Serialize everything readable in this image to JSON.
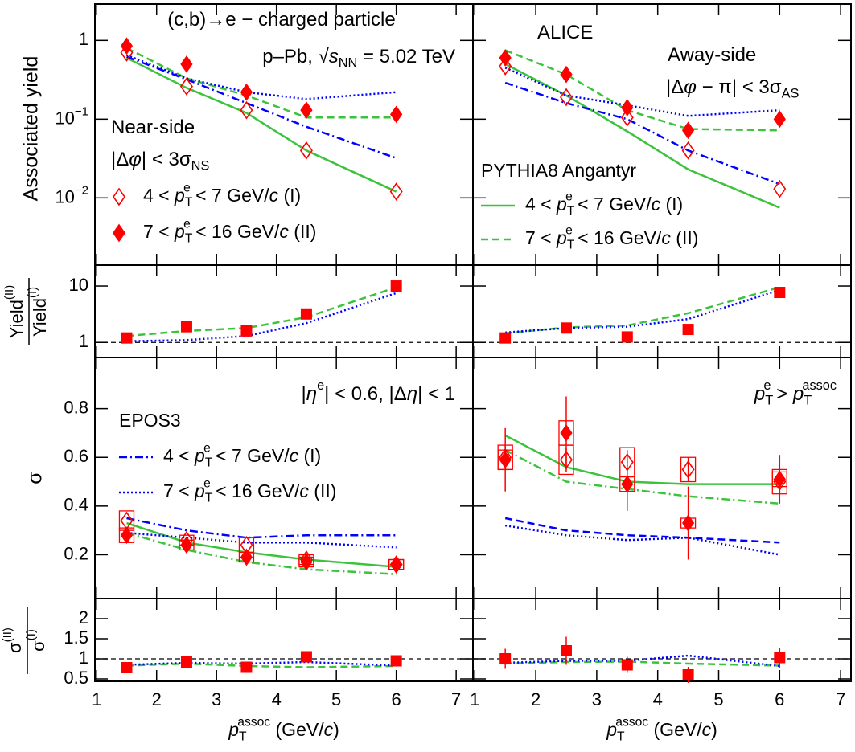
{
  "chart_data": [
    {
      "type": "line",
      "x": [
        1.5,
        2.5,
        3.5,
        4.5,
        6
      ],
      "xlim": [
        0.97,
        7.28
      ],
      "xticks": [
        1,
        2,
        3,
        4,
        5,
        6,
        7
      ],
      "xticklabels": false,
      "ylim": [
        0.0014,
        2.9
      ],
      "log": true,
      "yticks": [
        1,
        {
          "value": 0.1,
          "label": "10",
          "exp": "−1"
        },
        {
          "value": 0.01,
          "label": "10",
          "exp": "−2"
        }
      ],
      "yticklabels": true,
      "ylabel": "Associated yield",
      "annotations": [
        [
          {
            "text": "(c,b)→e − charged particle"
          }
        ],
        [
          {
            "text": "p–Pb, "
          },
          {
            "text": "√"
          },
          {
            "text": "s",
            "style": "i"
          },
          {
            "text": "NN",
            "style": "sub"
          },
          {
            "text": " = 5.02 TeV"
          }
        ],
        [
          {
            "text": "Near-side"
          }
        ],
        [
          {
            "text": "|Δ"
          },
          {
            "text": "φ",
            "style": "i"
          },
          {
            "text": "| < 3σ"
          },
          {
            "text": "NS",
            "style": "sub"
          }
        ]
      ],
      "series": [
        {
          "name": [
            {
              "text": "4 < "
            },
            {
              "text": "p",
              "style": "i"
            },
            {
              "text": "T",
              "style": "sub"
            },
            {
              "text": "e",
              "style": "sup"
            },
            {
              "text": " < 7 GeV/"
            },
            {
              "text": "c",
              "style": "i"
            },
            {
              "text": " (I)"
            }
          ],
          "color": "#ff0000",
          "marker": "diamond-open",
          "values": [
            0.7,
            0.26,
            0.13,
            0.04,
            0.012
          ]
        },
        {
          "name": [
            {
              "text": "7 < "
            },
            {
              "text": "p",
              "style": "i"
            },
            {
              "text": "T",
              "style": "sub"
            },
            {
              "text": "e",
              "style": "sup"
            },
            {
              "text": " < 16 GeV/"
            },
            {
              "text": "c",
              "style": "i"
            },
            {
              "text": " (II)"
            }
          ],
          "color": "#ff0000",
          "marker": "diamond",
          "values": [
            0.85,
            0.5,
            0.22,
            0.13,
            0.115
          ]
        },
        {
          "color": "#3cc33c",
          "dash": "solid",
          "values": [
            0.6,
            0.25,
            0.12,
            0.04,
            0.012
          ]
        },
        {
          "color": "#3cc33c",
          "dash": "dashed",
          "values": [
            0.8,
            0.33,
            0.2,
            0.105,
            0.105
          ]
        },
        {
          "color": "#0000ff",
          "dash": "dashdot",
          "values": [
            0.62,
            0.32,
            0.16,
            0.08,
            0.032
          ]
        },
        {
          "color": "#0000ff",
          "dash": "dotted",
          "values": [
            0.65,
            0.33,
            0.22,
            0.18,
            0.22
          ]
        }
      ]
    },
    {
      "type": "line",
      "x": [
        1.5,
        2.5,
        3.5,
        4.5,
        6
      ],
      "xlim": [
        0.97,
        7.17
      ],
      "xticks": [
        1,
        2,
        3,
        4,
        5,
        6,
        7
      ],
      "xticklabels": false,
      "ylim": [
        0.0014,
        2.9
      ],
      "log": true,
      "yticks": [
        1,
        0.1,
        0.01
      ],
      "yticklabels": false,
      "annotations": [
        [
          {
            "text": "ALICE"
          }
        ],
        [
          {
            "text": "Away-side"
          }
        ],
        [
          {
            "text": "|Δ"
          },
          {
            "text": "φ",
            "style": "i"
          },
          {
            "text": " − π| < 3σ"
          },
          {
            "text": "AS",
            "style": "sub"
          }
        ]
      ],
      "legend_title": "PYTHIA8 Angantyr",
      "series": [
        {
          "color": "#ff0000",
          "marker": "diamond-open",
          "values": [
            0.47,
            0.19,
            0.105,
            0.04,
            0.013
          ]
        },
        {
          "color": "#ff0000",
          "marker": "diamond",
          "values": [
            0.6,
            0.37,
            0.14,
            0.072,
            0.1
          ]
        },
        {
          "name": [
            {
              "text": "4 < "
            },
            {
              "text": "p",
              "style": "i"
            },
            {
              "text": "T",
              "style": "sub"
            },
            {
              "text": "e",
              "style": "sup"
            },
            {
              "text": " < 7 GeV/"
            },
            {
              "text": "c",
              "style": "i"
            },
            {
              "text": " (I)"
            }
          ],
          "color": "#3cc33c",
          "dash": "solid",
          "values": [
            0.5,
            0.2,
            0.07,
            0.023,
            0.0075
          ]
        },
        {
          "name": [
            {
              "text": "7 < "
            },
            {
              "text": "p",
              "style": "i"
            },
            {
              "text": "T",
              "style": "sub"
            },
            {
              "text": "e",
              "style": "sup"
            },
            {
              "text": " < 16 GeV/"
            },
            {
              "text": "c",
              "style": "i"
            },
            {
              "text": " (II)"
            }
          ],
          "color": "#3cc33c",
          "dash": "dashed",
          "values": [
            0.75,
            0.37,
            0.13,
            0.075,
            0.072
          ]
        },
        {
          "color": "#0000ff",
          "dash": "dashdot",
          "values": [
            0.29,
            0.16,
            0.1,
            0.04,
            0.015
          ]
        },
        {
          "color": "#0000ff",
          "dash": "dotted",
          "values": [
            0.45,
            0.2,
            0.15,
            0.11,
            0.13
          ]
        }
      ]
    },
    {
      "type": "line",
      "x": [
        1.5,
        2.5,
        3.5,
        4.5,
        6
      ],
      "xlim": [
        0.97,
        7.28
      ],
      "xticks": [
        1,
        2,
        3,
        4,
        5,
        6,
        7
      ],
      "xticklabels": false,
      "ylim": [
        0.54,
        23.5
      ],
      "log": true,
      "yticks": [
        1,
        10
      ],
      "yticklabels": true,
      "refline": 1,
      "ylabel": {
        "num": [
          {
            "text": "Yield"
          },
          {
            "text": "(II)",
            "style": "sup"
          }
        ],
        "den": [
          {
            "text": "Yield"
          },
          {
            "text": "(I)",
            "style": "sup"
          }
        ]
      },
      "series": [
        {
          "color": "#3cc33c",
          "dash": "dashed",
          "values": [
            1.3,
            1.6,
            1.8,
            2.8,
            9.5
          ]
        },
        {
          "color": "#0000ff",
          "dash": "dotted",
          "values": [
            1.05,
            1.1,
            1.3,
            2.2,
            7.5
          ]
        },
        {
          "color": "#ff0000",
          "marker": "square",
          "values": [
            1.2,
            1.9,
            1.6,
            3.2,
            10
          ]
        }
      ]
    },
    {
      "type": "line",
      "x": [
        1.5,
        2.5,
        3.5,
        4.5,
        6
      ],
      "xlim": [
        0.97,
        7.17
      ],
      "xticks": [
        1,
        2,
        3,
        4,
        5,
        6,
        7
      ],
      "xticklabels": false,
      "ylim": [
        0.54,
        23.5
      ],
      "log": true,
      "yticks": [
        1,
        10
      ],
      "yticklabels": false,
      "refline": 1,
      "series": [
        {
          "color": "#3cc33c",
          "dash": "dashed",
          "values": [
            1.45,
            1.85,
            2.0,
            3.3,
            9.5
          ]
        },
        {
          "color": "#0000ff",
          "dash": "dotted",
          "values": [
            1.5,
            1.8,
            1.9,
            2.6,
            8.5
          ]
        },
        {
          "color": "#ff0000",
          "marker": "square",
          "values": [
            1.2,
            1.8,
            1.25,
            1.7,
            7.7
          ]
        }
      ]
    },
    {
      "type": "line",
      "x": [
        1.5,
        2.5,
        3.5,
        4.5,
        6
      ],
      "xlim": [
        0.97,
        7.28
      ],
      "xticks": [
        1,
        2,
        3,
        4,
        5,
        6,
        7
      ],
      "xticklabels": false,
      "ylim": [
        0.02,
        1.01
      ],
      "log": false,
      "yticks": [
        0.2,
        0.4,
        0.6,
        0.8
      ],
      "yticklabels": true,
      "ylabel": "σ",
      "annotations": [
        [
          {
            "text": "|"
          },
          {
            "text": "η",
            "style": "i"
          },
          {
            "text": "e",
            "style": "sup"
          },
          {
            "text": "| < 0.6, |Δ"
          },
          {
            "text": "η",
            "style": "i"
          },
          {
            "text": "| < 1"
          }
        ]
      ],
      "legend_title": "EPOS3",
      "series": [
        {
          "color": "#3cc33c",
          "dash": "solid",
          "values": [
            0.33,
            0.25,
            0.21,
            0.18,
            0.15
          ]
        },
        {
          "color": "#3cc33c",
          "dash": "dashdot",
          "values": [
            0.29,
            0.22,
            0.17,
            0.14,
            0.12
          ]
        },
        {
          "name": [
            {
              "text": "4 < "
            },
            {
              "text": "p",
              "style": "i"
            },
            {
              "text": "T",
              "style": "sub"
            },
            {
              "text": "e",
              "style": "sup"
            },
            {
              "text": " < 7 GeV/"
            },
            {
              "text": "c",
              "style": "i"
            },
            {
              "text": " (I)"
            }
          ],
          "color": "#0000ff",
          "dash": "dashdot",
          "values": [
            0.35,
            0.3,
            0.27,
            0.28,
            0.28
          ]
        },
        {
          "name": [
            {
              "text": "7 < "
            },
            {
              "text": "p",
              "style": "i"
            },
            {
              "text": "T",
              "style": "sub"
            },
            {
              "text": "e",
              "style": "sup"
            },
            {
              "text": " < 16 GeV/"
            },
            {
              "text": "c",
              "style": "i"
            },
            {
              "text": " (II)"
            }
          ],
          "color": "#0000ff",
          "dash": "dotted",
          "values": [
            0.29,
            0.27,
            0.25,
            0.25,
            0.23
          ]
        },
        {
          "color": "#ff0000",
          "marker": "diamond-open",
          "values": [
            0.34,
            0.26,
            0.24,
            0.18,
            0.16
          ],
          "sys": [
            0.04,
            0.02,
            0.03,
            0.02,
            0.02
          ]
        },
        {
          "color": "#ff0000",
          "marker": "diamond",
          "values": [
            0.28,
            0.24,
            0.19,
            0.17,
            0.16
          ],
          "sys": [
            0.03,
            0.02,
            0.02,
            0.02,
            0.02
          ]
        }
      ]
    },
    {
      "type": "line",
      "x": [
        1.5,
        2.5,
        3.5,
        4.5,
        6
      ],
      "xlim": [
        0.97,
        7.17
      ],
      "xticks": [
        1,
        2,
        3,
        4,
        5,
        6,
        7
      ],
      "xticklabels": false,
      "ylim": [
        0.02,
        1.01
      ],
      "log": false,
      "yticks": [
        0.2,
        0.4,
        0.6,
        0.8
      ],
      "yticklabels": false,
      "annotations": [
        [
          {
            "text": "p",
            "style": "i"
          },
          {
            "text": "T",
            "style": "sub"
          },
          {
            "text": "e",
            "style": "sup"
          },
          {
            "text": " > "
          },
          {
            "text": "p",
            "style": "i"
          },
          {
            "text": "T",
            "style": "sub"
          },
          {
            "text": "assoc",
            "style": "sup"
          }
        ]
      ],
      "series": [
        {
          "color": "#3cc33c",
          "dash": "solid",
          "values": [
            0.69,
            0.56,
            0.5,
            0.49,
            0.49
          ]
        },
        {
          "color": "#3cc33c",
          "dash": "dashdot",
          "values": [
            0.63,
            0.5,
            0.47,
            0.44,
            0.41
          ]
        },
        {
          "color": "#0000ff",
          "dash": "dashed",
          "values": [
            0.35,
            0.3,
            0.28,
            0.27,
            0.25
          ]
        },
        {
          "color": "#0000ff",
          "dash": "dotted",
          "values": [
            0.32,
            0.28,
            0.26,
            0.27,
            0.2
          ]
        },
        {
          "color": "#ff0000",
          "marker": "diamond-open",
          "values": [
            0.6,
            0.59,
            0.58,
            0.55,
            0.5
          ],
          "errors": [
            0.05,
            0.05,
            0.05,
            0.05,
            0.05
          ],
          "sys": [
            0.05,
            0.06,
            0.06,
            0.05,
            0.05
          ]
        },
        {
          "color": "#ff0000",
          "marker": "diamond",
          "values": [
            0.59,
            0.7,
            0.49,
            0.33,
            0.51
          ],
          "errors": [
            0.13,
            0.15,
            0.11,
            0.15,
            0.1
          ],
          "sys": [
            0.04,
            0.05,
            0.03,
            0.02,
            0.03
          ]
        }
      ]
    },
    {
      "type": "line",
      "x": [
        1.5,
        2.5,
        3.5,
        4.5,
        6
      ],
      "xlim": [
        0.97,
        7.28
      ],
      "xticks": [
        1,
        2,
        3,
        4,
        5,
        6,
        7
      ],
      "xticklabels": true,
      "ylim": [
        0.44,
        2.5
      ],
      "log": false,
      "yticks": [
        0.5,
        1,
        1.5,
        2
      ],
      "yticklabels": true,
      "refline": 1,
      "ylabel": {
        "num": [
          {
            "text": "σ"
          },
          {
            "text": "(II)",
            "style": "sup"
          }
        ],
        "den": [
          {
            "text": "σ"
          },
          {
            "text": "(I)",
            "style": "sup"
          }
        ]
      },
      "xlabel": [
        {
          "text": "p",
          "style": "i"
        },
        {
          "text": "T",
          "style": "sub"
        },
        {
          "text": "assoc",
          "style": "sup"
        },
        {
          "text": " (GeV/"
        },
        {
          "text": "c",
          "style": "i"
        },
        {
          "text": ")"
        }
      ],
      "series": [
        {
          "color": "#3cc33c",
          "dash": "dashed",
          "values": [
            0.83,
            0.88,
            0.82,
            0.79,
            0.82
          ]
        },
        {
          "color": "#0000ff",
          "dash": "dotted",
          "values": [
            0.85,
            0.9,
            0.88,
            0.92,
            0.83
          ]
        },
        {
          "color": "#ff0000",
          "marker": "square",
          "values": [
            0.78,
            0.92,
            0.79,
            1.05,
            0.95
          ]
        }
      ]
    },
    {
      "type": "line",
      "x": [
        1.5,
        2.5,
        3.5,
        4.5,
        6
      ],
      "xlim": [
        0.97,
        7.17
      ],
      "xticks": [
        1,
        2,
        3,
        4,
        5,
        6,
        7
      ],
      "xticklabels": true,
      "ylim": [
        0.44,
        2.5
      ],
      "log": false,
      "yticks": [
        0.5,
        1,
        1.5,
        2
      ],
      "yticklabels": false,
      "refline": 1,
      "xlabel": [
        {
          "text": "p",
          "style": "i"
        },
        {
          "text": "T",
          "style": "sub"
        },
        {
          "text": "assoc",
          "style": "sup"
        },
        {
          "text": " (GeV/"
        },
        {
          "text": "c",
          "style": "i"
        },
        {
          "text": ")"
        }
      ],
      "series": [
        {
          "color": "#3cc33c",
          "dash": "dashed",
          "values": [
            0.88,
            0.92,
            0.93,
            0.88,
            0.83
          ]
        },
        {
          "color": "#0000ff",
          "dash": "dotted",
          "values": [
            0.9,
            0.95,
            0.95,
            1.08,
            0.82
          ]
        },
        {
          "color": "#ff0000",
          "marker": "square",
          "values": [
            1.0,
            1.2,
            0.85,
            0.6,
            1.03
          ],
          "errors": [
            0.25,
            0.35,
            0.2,
            0.2,
            0.25
          ]
        }
      ]
    }
  ]
}
